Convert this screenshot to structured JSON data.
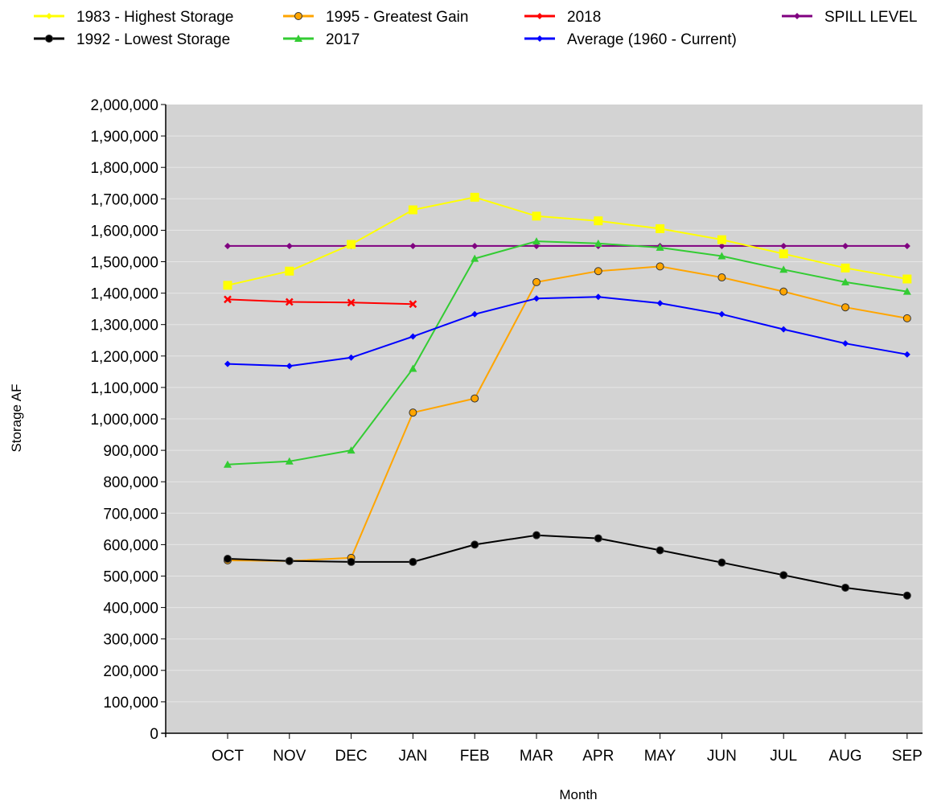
{
  "chart_data": {
    "type": "line",
    "title": "",
    "xlabel": "Month",
    "ylabel": "Storage AF",
    "categories": [
      "OCT",
      "NOV",
      "DEC",
      "JAN",
      "FEB",
      "MAR",
      "APR",
      "MAY",
      "JUN",
      "JUL",
      "AUG",
      "SEP"
    ],
    "ylim": [
      0,
      2000000
    ],
    "ytick_step": 100000,
    "y_tick_labels": [
      "0",
      "100,000",
      "200,000",
      "300,000",
      "400,000",
      "500,000",
      "600,000",
      "700,000",
      "800,000",
      "900,000",
      "1,000,000",
      "1,100,000",
      "1,200,000",
      "1,300,000",
      "1,400,000",
      "1,500,000",
      "1,600,000",
      "1,700,000",
      "1,800,000",
      "1,900,000",
      "2,000,000"
    ],
    "grid": true,
    "legend_position": "top",
    "series": [
      {
        "name": "1983 - Highest Storage",
        "color": "#ffff00",
        "marker": "square",
        "values": [
          1425000,
          1470000,
          1555000,
          1665000,
          1705000,
          1645000,
          1630000,
          1605000,
          1570000,
          1525000,
          1480000,
          1445000
        ]
      },
      {
        "name": "1992 - Lowest Storage",
        "color": "#000000",
        "marker": "circle",
        "values": [
          555000,
          548000,
          545000,
          545000,
          600000,
          630000,
          620000,
          582000,
          543000,
          503000,
          463000,
          438000
        ]
      },
      {
        "name": "1995 - Greatest Gain",
        "color": "#ffa500",
        "marker": "circle",
        "values": [
          550000,
          548000,
          558000,
          1020000,
          1065000,
          1435000,
          1470000,
          1485000,
          1450000,
          1405000,
          1355000,
          1320000
        ]
      },
      {
        "name": "2017",
        "color": "#33cc33",
        "marker": "triangle",
        "values": [
          855000,
          865000,
          900000,
          1160000,
          1510000,
          1565000,
          1558000,
          1545000,
          1518000,
          1475000,
          1435000,
          1405000
        ]
      },
      {
        "name": "2018",
        "color": "#ff0000",
        "marker": "x",
        "values": [
          1380000,
          1372000,
          1370000,
          1365000,
          null,
          null,
          null,
          null,
          null,
          null,
          null,
          null
        ]
      },
      {
        "name": "Average (1960 - Current)",
        "color": "#0000ff",
        "marker": "diamond",
        "values": [
          1175000,
          1168000,
          1195000,
          1262000,
          1333000,
          1383000,
          1388000,
          1368000,
          1333000,
          1285000,
          1240000,
          1205000
        ]
      },
      {
        "name": "SPILL LEVEL",
        "color": "#800080",
        "marker": "diamond",
        "values": [
          1550000,
          1550000,
          1550000,
          1550000,
          1550000,
          1550000,
          1550000,
          1550000,
          1550000,
          1550000,
          1550000,
          1550000
        ]
      }
    ]
  },
  "colors": {
    "plot_background": "#d3d3d3",
    "gridline": "#e6e6e6",
    "axis": "#000000"
  }
}
